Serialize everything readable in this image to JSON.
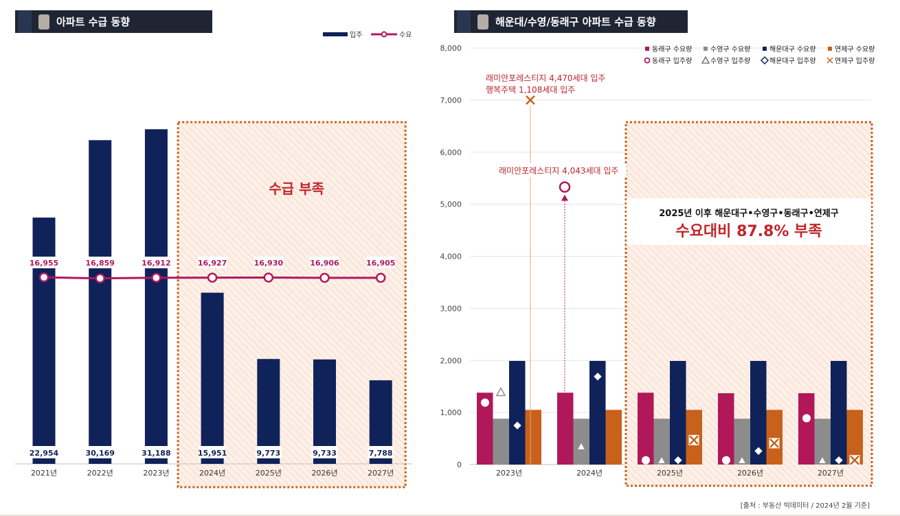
{
  "header": {
    "left_title": "아파트 수급 동향",
    "right_title": "해운대/수영/동래구 아파트 수급 동향"
  },
  "colors": {
    "navy": "#0f2259",
    "magenta": "#b0185a",
    "gray": "#8c8c8c",
    "orange": "#c8611c",
    "shortage_border": "#c8611c",
    "shortage_fill": "#fdf0e8",
    "annotation_red": "#c0252b"
  },
  "source": "[출처 : 부동산 빅데이터 / 2024년 2월 기준]",
  "chart_data": [
    {
      "type": "bar",
      "title": "아파트 수급 동향",
      "categories": [
        "2021년",
        "2022년",
        "2023년",
        "2024년",
        "2025년",
        "2026년",
        "2027년"
      ],
      "series": [
        {
          "name": "입주",
          "type": "bar",
          "values": [
            22954,
            30169,
            31188,
            15951,
            9773,
            9733,
            7788
          ],
          "labels": [
            "22,954",
            "30,169",
            "31,188",
            "15,951",
            "9,773",
            "9,733",
            "7,788"
          ]
        },
        {
          "name": "수요",
          "type": "line",
          "values": [
            16955,
            16859,
            16912,
            16927,
            16930,
            16906,
            16905
          ],
          "labels": [
            "16,955",
            "16,859",
            "16,912",
            "16,927",
            "16,930",
            "16,906",
            "16,905"
          ]
        }
      ],
      "ylim": [
        0,
        33000
      ],
      "shortage_region": {
        "from": "2024년",
        "to": "2027년",
        "label": "수급 부족"
      },
      "legend": "top-right",
      "grid": false
    },
    {
      "type": "bar",
      "title": "해운대/수영/동래구 아파트 수급 동향",
      "categories": [
        "2023년",
        "2024년",
        "2025년",
        "2026년",
        "2027년"
      ],
      "y_ticks": [
        "0",
        "1,000",
        "2,000",
        "3,000",
        "4,000",
        "5,000",
        "6,000",
        "7,000",
        "8,000"
      ],
      "ylim": [
        0,
        8000
      ],
      "grid": true,
      "legend": "top-right",
      "series": [
        {
          "name": "동래구 수요량",
          "type": "bar",
          "values": [
            1380,
            1380,
            1380,
            1370,
            1370
          ]
        },
        {
          "name": "수영구 수요량",
          "type": "bar",
          "values": [
            880,
            880,
            880,
            880,
            880
          ]
        },
        {
          "name": "해운대구 수요량",
          "type": "bar",
          "values": [
            1990,
            1990,
            1990,
            1990,
            1990
          ]
        },
        {
          "name": "연제구 수요량",
          "type": "bar",
          "values": [
            1050,
            1050,
            1050,
            1050,
            1050
          ]
        },
        {
          "name": "동래구 입주량",
          "type": "scatter",
          "marker": "circle",
          "values": [
            1190,
            5330,
            30,
            30,
            890
          ]
        },
        {
          "name": "수영구 입주량",
          "type": "scatter",
          "marker": "triangle",
          "values": [
            1390,
            350,
            30,
            30,
            30
          ]
        },
        {
          "name": "해운대구 입주량",
          "type": "scatter",
          "marker": "diamond",
          "values": [
            750,
            1690,
            30,
            260,
            30
          ]
        },
        {
          "name": "연제구 입주량",
          "type": "scatter",
          "marker": "x",
          "values": [
            0,
            7000,
            470,
            410,
            30
          ]
        }
      ],
      "annotations": [
        {
          "lines": [
            "래미안포레스티지 4,470세대 입주",
            "행복주택 1,108세대 입주"
          ],
          "category": "2024년",
          "series": "연제구 입주량"
        },
        {
          "lines": [
            "래미안포레스티지 4,043세대 입주"
          ],
          "category": "2024년",
          "series": "동래구 입주량"
        }
      ],
      "shortage_region": {
        "from": "2025년",
        "to": "2027년",
        "label_line1": "2025년 이후 해운대구•수영구•동래구•연제구",
        "label_line2": "수요대비 87.8% 부족"
      }
    }
  ]
}
